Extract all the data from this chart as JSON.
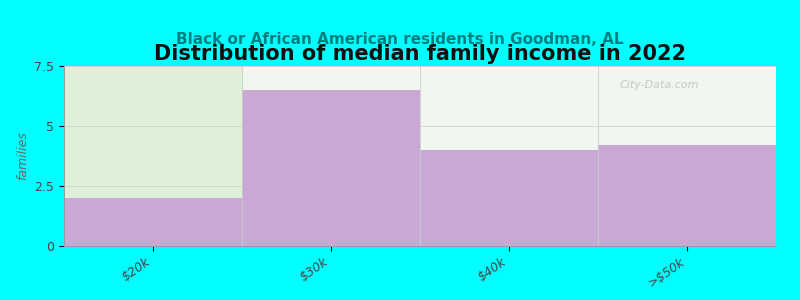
{
  "title": "Distribution of median family income in 2022",
  "subtitle": "Black or African American residents in Goodman, AL",
  "categories": [
    "$20k",
    "$30k",
    "$40k",
    ">$50k"
  ],
  "values": [
    2.0,
    6.5,
    4.0,
    4.2
  ],
  "bar_color": "#c9a8d4",
  "first_bar_bg_color": "#dff0d8",
  "plot_bg_color": "#f0f7ee",
  "background_color": "#00ffff",
  "ylabel": "families",
  "ylim": [
    0,
    7.5
  ],
  "yticks": [
    0,
    2.5,
    5,
    7.5
  ],
  "title_fontsize": 15,
  "subtitle_fontsize": 11,
  "subtitle_color": "#008080",
  "watermark_text": "City-Data.com",
  "tick_label_fontsize": 9,
  "spine_color": "#999999"
}
